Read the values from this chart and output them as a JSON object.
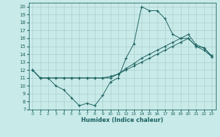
{
  "xlabel": "Humidex (Indice chaleur)",
  "bg_color": "#c8eae8",
  "grid_color": "#aacfcc",
  "line_color": "#1a6060",
  "xlim": [
    -0.5,
    23.5
  ],
  "ylim": [
    7,
    20.5
  ],
  "xticks": [
    0,
    1,
    2,
    3,
    4,
    5,
    6,
    7,
    8,
    9,
    10,
    11,
    12,
    13,
    14,
    15,
    16,
    17,
    18,
    19,
    20,
    21,
    22,
    23
  ],
  "yticks": [
    7,
    8,
    9,
    10,
    11,
    12,
    13,
    14,
    15,
    16,
    17,
    18,
    19,
    20
  ],
  "series": [
    [
      12,
      11,
      11,
      10,
      9.5,
      8.5,
      7.5,
      7.8,
      7.5,
      8.8,
      10.5,
      11,
      13.5,
      15.3,
      20,
      19.5,
      19.5,
      18.5,
      16.5,
      16,
      16,
      15,
      14.8,
      13.8
    ],
    [
      12,
      11,
      11,
      11,
      11,
      11,
      11,
      11,
      11,
      11,
      11.2,
      11.5,
      12.2,
      12.8,
      13.5,
      14,
      14.5,
      15,
      15.5,
      16,
      16.5,
      15.2,
      14.8,
      13.7
    ],
    [
      12,
      11,
      11,
      11,
      11,
      11,
      11,
      11,
      11,
      11,
      11,
      11.5,
      12,
      12.5,
      13,
      13.5,
      14,
      14.5,
      15,
      15.5,
      16,
      15,
      14.5,
      13.7
    ]
  ],
  "figsize": [
    3.2,
    2.0
  ],
  "dpi": 100
}
